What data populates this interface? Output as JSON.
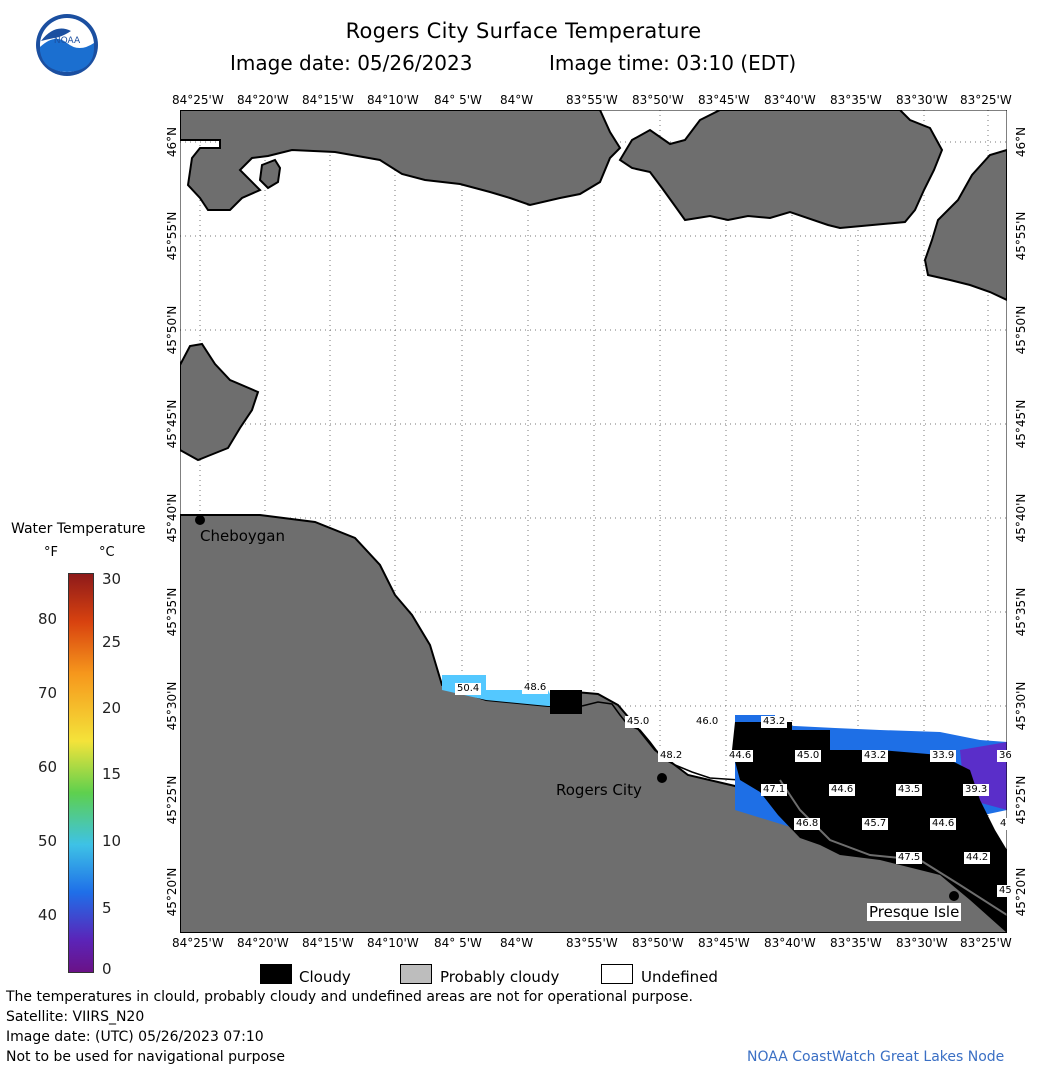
{
  "header": {
    "title": "Rogers City Surface Temperature",
    "date_label": "Image date: 05/26/2023",
    "time_label": "Image time: 03:10 (EDT)",
    "logo_text": "NOAA"
  },
  "map": {
    "lon_labels": [
      "84°25'W",
      "84°20'W",
      "84°15'W",
      "84°10'W",
      "84° 5'W",
      "84°W",
      "83°55'W",
      "83°50'W",
      "83°45'W",
      "83°40'W",
      "83°35'W",
      "83°30'W",
      "83°25'W"
    ],
    "lat_labels": [
      "46°N",
      "45°55'N",
      "45°50'N",
      "45°45'N",
      "45°40'N",
      "45°35'N",
      "45°30'N",
      "45°25'N",
      "45°20'N"
    ],
    "places": [
      {
        "name": "Cheboygan"
      },
      {
        "name": "Rogers City"
      },
      {
        "name": "Presque Isle"
      }
    ],
    "temperature_labels": [
      "50.4",
      "48.6",
      "45.0",
      "46.0",
      "43.2",
      "48.2",
      "44.6",
      "45.0",
      "43.2",
      "33.9",
      "36",
      "47.1",
      "44.6",
      "43.5",
      "39.3",
      "46.8",
      "45.7",
      "44.6",
      "4",
      "47.5",
      "44.2",
      "45"
    ],
    "colors": {
      "land": "#6e6e6e",
      "cloudy": "#000000",
      "water_cold": "#1e6fe6",
      "water_warm": "#54c8ff",
      "water_coldest": "#5a2ec9"
    }
  },
  "colorbar": {
    "title": "Water Temperature",
    "unit_f": "°F",
    "unit_c": "°C",
    "f_ticks": [
      "80",
      "70",
      "60",
      "50",
      "40"
    ],
    "c_ticks": [
      "30",
      "25",
      "20",
      "15",
      "10",
      "5",
      "0"
    ]
  },
  "legend": {
    "cloudy": "Cloudy",
    "probably_cloudy": "Probably cloudy",
    "undefined": "Undefined"
  },
  "footer": {
    "note": "The temperatures in clould, probably cloudy and undefined areas are not for operational purpose.",
    "satellite": "Satellite: VIIRS_N20",
    "utc_date": "Image date: (UTC) 05/26/2023  07:10",
    "navigation": "Not to be used for navigational purpose",
    "credit": "NOAA CoastWatch Great Lakes Node"
  }
}
